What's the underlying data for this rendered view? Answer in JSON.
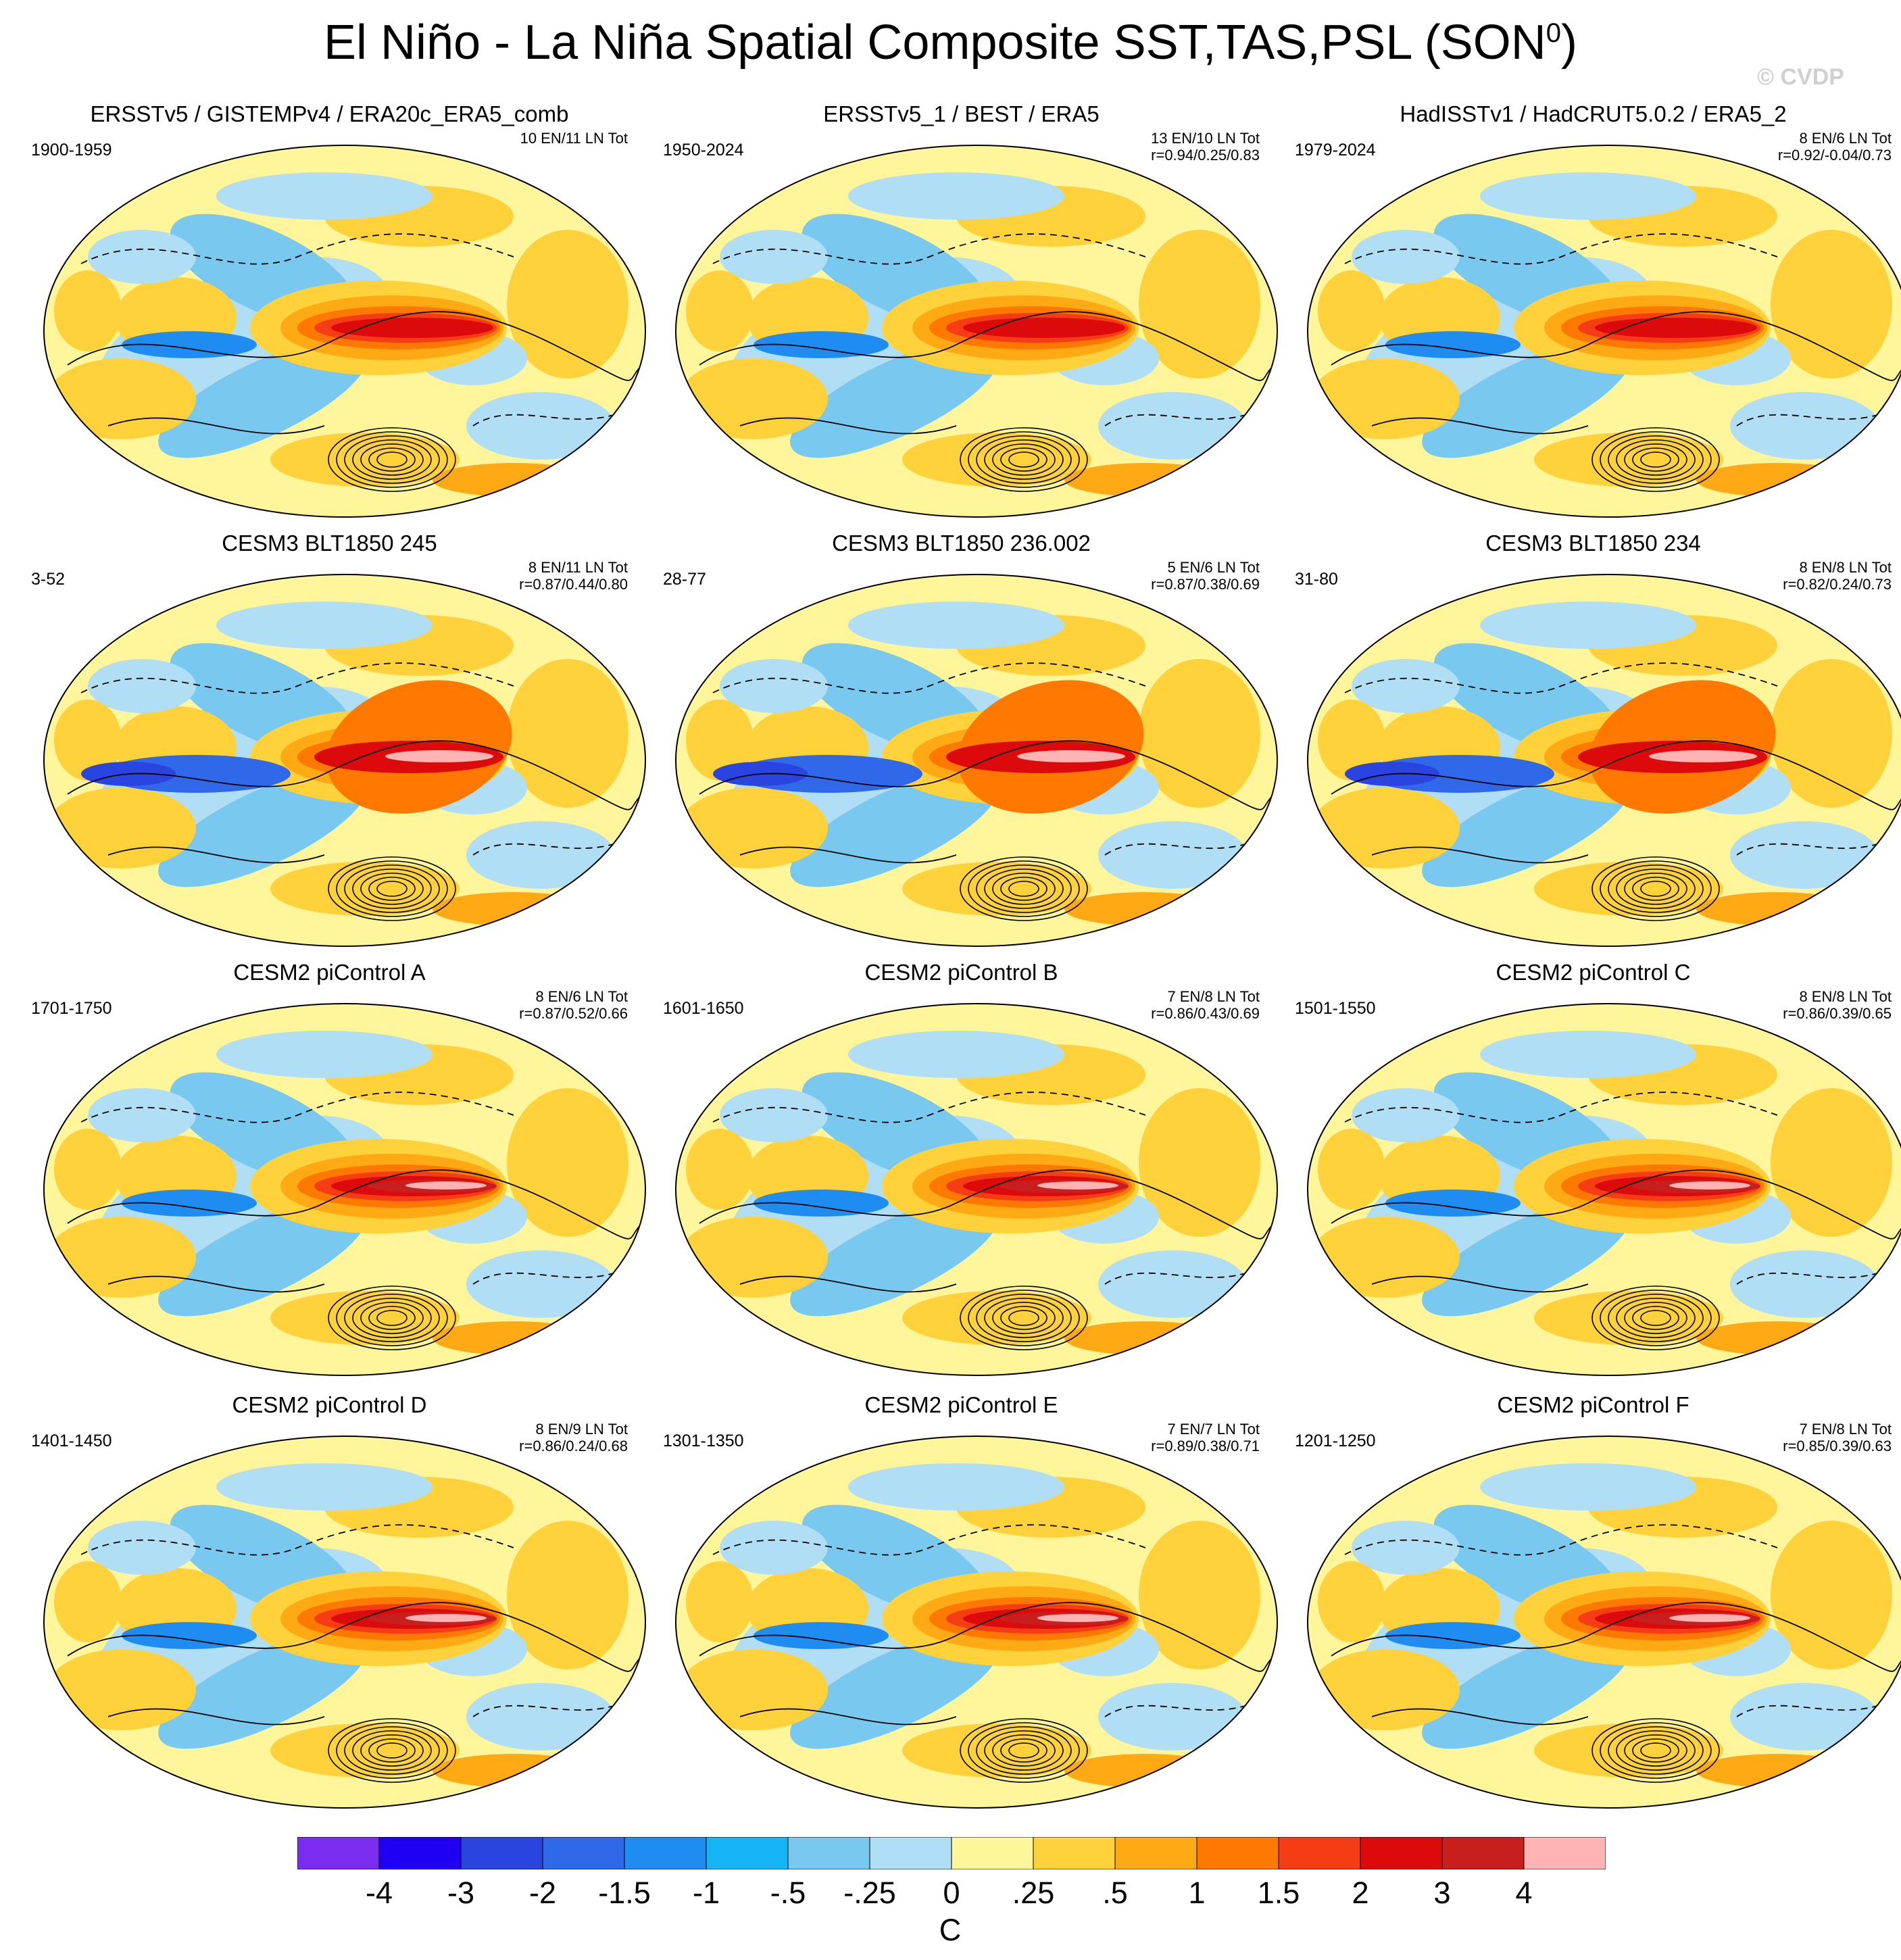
{
  "title_main": "El Niño - La Niña Spatial Composite SST,TAS,PSL (SON",
  "title_sup": "0",
  "title_close": ")",
  "watermark": "© CVDP",
  "panels": [
    {
      "title": "ERSSTv5 / GISTEMPv4 / ERA20c_ERA5_comb",
      "years": "1900-1959",
      "events": "10 EN/11 LN Tot",
      "corr": ""
    },
    {
      "title": "ERSSTv5_1 / BEST / ERA5",
      "years": "1950-2024",
      "events": "13 EN/10 LN Tot",
      "corr": "r=0.94/0.25/0.83"
    },
    {
      "title": "HadISSTv1 / HadCRUT5.0.2 / ERA5_2",
      "years": "1979-2024",
      "events": "8 EN/6 LN Tot",
      "corr": "r=0.92/-0.04/0.73"
    },
    {
      "title": "CESM3 BLT1850 245",
      "years": "3-52",
      "events": "8 EN/11 LN Tot",
      "corr": "r=0.87/0.44/0.80"
    },
    {
      "title": "CESM3 BLT1850 236.002",
      "years": "28-77",
      "events": "5 EN/6 LN Tot",
      "corr": "r=0.87/0.38/0.69"
    },
    {
      "title": "CESM3 BLT1850 234",
      "years": "31-80",
      "events": "8 EN/8 LN Tot",
      "corr": "r=0.82/0.24/0.73"
    },
    {
      "title": "CESM2 piControl A",
      "years": "1701-1750",
      "events": "8 EN/6 LN Tot",
      "corr": "r=0.87/0.52/0.66"
    },
    {
      "title": "CESM2 piControl B",
      "years": "1601-1650",
      "events": "7 EN/8 LN Tot",
      "corr": "r=0.86/0.43/0.69"
    },
    {
      "title": "CESM2 piControl C",
      "years": "1501-1550",
      "events": "8 EN/8 LN Tot",
      "corr": "r=0.86/0.39/0.65"
    },
    {
      "title": "CESM2 piControl D",
      "years": "1401-1450",
      "events": "8 EN/9 LN Tot",
      "corr": "r=0.86/0.24/0.68"
    },
    {
      "title": "CESM2 piControl E",
      "years": "1301-1350",
      "events": "7 EN/7 LN Tot",
      "corr": "r=0.89/0.38/0.71"
    },
    {
      "title": "CESM2 piControl F",
      "years": "1201-1250",
      "events": "7 EN/8 LN Tot",
      "corr": "r=0.85/0.39/0.63"
    }
  ],
  "colorbar": {
    "labels": [
      "-4",
      "-3",
      "-2",
      "-1.5",
      "-1",
      "-.5",
      "-.25",
      "0",
      ".25",
      ".5",
      "1",
      "1.5",
      "2",
      "3",
      "4"
    ],
    "colors": [
      "#7b2cf0",
      "#1f00f5",
      "#2a44e0",
      "#2f68e8",
      "#1e8cf0",
      "#14b4f5",
      "#78c8f0",
      "#b0def5",
      "#fff59a",
      "#ffd23c",
      "#ffaa14",
      "#ff7800",
      "#f53c14",
      "#dc0a0a",
      "#c81e1e",
      "#ffb4b4"
    ],
    "units": "C"
  }
}
